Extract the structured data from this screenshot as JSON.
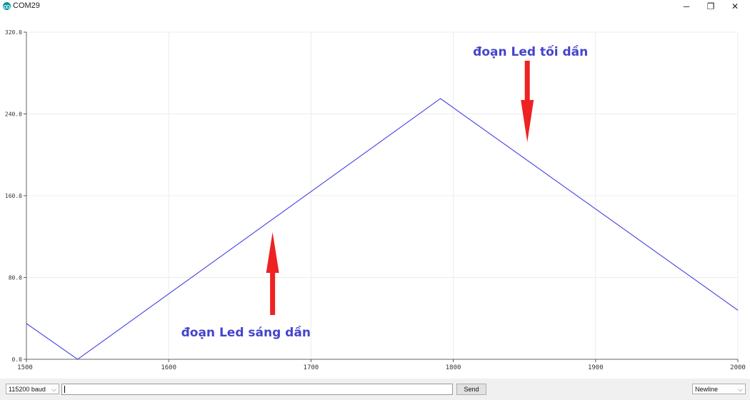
{
  "window": {
    "title": "COM29",
    "minimize_glyph": "─",
    "restore_glyph": "❐",
    "close_glyph": "✕"
  },
  "chart_data": {
    "type": "line",
    "xlim": [
      1500,
      2000
    ],
    "ylim": [
      0,
      320
    ],
    "x_ticks": [
      1500,
      1600,
      1700,
      1800,
      1900,
      2000
    ],
    "y_ticks": [
      0,
      80,
      160,
      240,
      320
    ],
    "x_tick_labels": [
      "1500",
      "1600",
      "1700",
      "1800",
      "1900",
      "2000"
    ],
    "y_tick_labels": [
      "0.0",
      "80.0",
      "160.0",
      "240.0",
      "320.0"
    ],
    "grid": true,
    "series": [
      {
        "color": "#3232e6",
        "points": [
          [
            1500,
            35
          ],
          [
            1536,
            0
          ],
          [
            1791,
            255
          ],
          [
            2000,
            48
          ]
        ]
      }
    ],
    "annotations": [
      {
        "text": "đoạn Led tối dần",
        "color": "#4444cc",
        "arrow_color": "#ee2222",
        "arrow": "down",
        "x": 1852
      },
      {
        "text": "đoạn Led sáng dần",
        "color": "#4444cc",
        "arrow_color": "#ee2222",
        "arrow": "up",
        "x": 1673
      }
    ]
  },
  "bottom": {
    "baud": "115200 baud",
    "send_label": "Send",
    "line_ending": "Newline",
    "input_value": ""
  }
}
